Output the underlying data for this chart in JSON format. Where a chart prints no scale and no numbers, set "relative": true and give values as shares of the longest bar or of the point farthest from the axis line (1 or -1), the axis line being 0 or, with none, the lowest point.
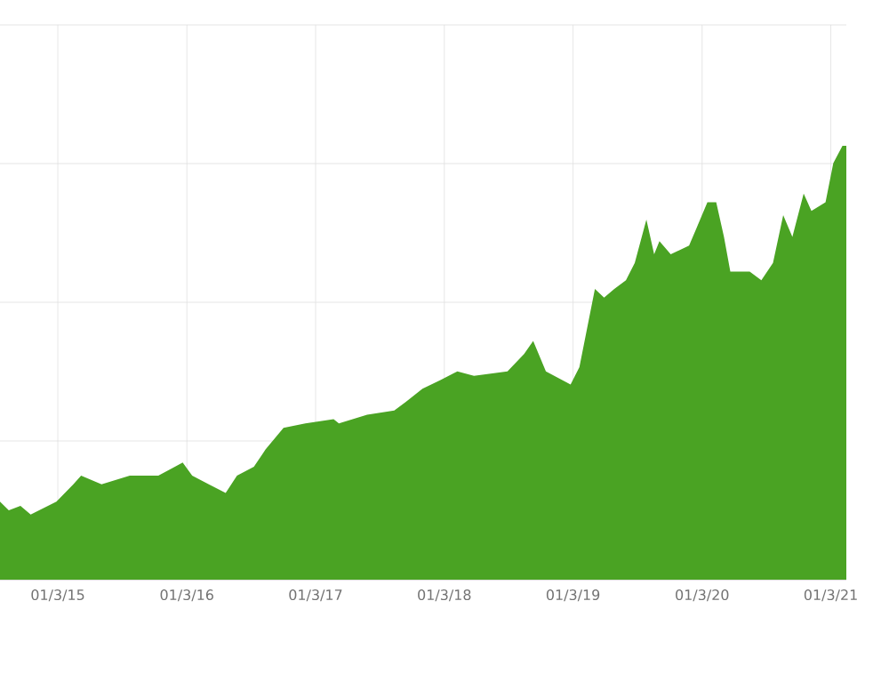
{
  "chart_data": {
    "type": "area",
    "relative": true,
    "grid": true,
    "color": "#4aa323",
    "xlim": [
      "2014-09-18",
      "2021-04-14"
    ],
    "xticks": [
      {
        "value": "2015-03-01",
        "label": "01/3/15"
      },
      {
        "value": "2016-03-01",
        "label": "01/3/16"
      },
      {
        "value": "2017-03-01",
        "label": "01/3/17"
      },
      {
        "value": "2018-03-01",
        "label": "01/3/18"
      },
      {
        "value": "2019-03-01",
        "label": "01/3/19"
      },
      {
        "value": "2020-03-01",
        "label": "01/3/20"
      },
      {
        "value": "2021-03-01",
        "label": "01/3/21"
      }
    ],
    "x": [
      "2014-09-18",
      "2014-10-13",
      "2014-11-15",
      "2014-12-14",
      "2015-02-25",
      "2015-04-14",
      "2015-05-06",
      "2015-07-03",
      "2015-09-21",
      "2015-12-11",
      "2016-01-27",
      "2016-02-18",
      "2016-03-16",
      "2016-05-02",
      "2016-06-19",
      "2016-07-21",
      "2016-09-07",
      "2016-10-10",
      "2016-11-30",
      "2017-01-31",
      "2017-04-21",
      "2017-05-06",
      "2017-07-25",
      "2017-10-10",
      "2017-11-12",
      "2017-12-29",
      "2018-02-18",
      "2018-04-07",
      "2018-05-24",
      "2018-08-27",
      "2018-10-13",
      "2018-11-08",
      "2018-12-14",
      "2019-02-22",
      "2019-03-19",
      "2019-05-02",
      "2019-05-28",
      "2019-06-26",
      "2019-07-29",
      "2019-08-23",
      "2019-09-25",
      "2019-10-17",
      "2019-11-01",
      "2019-12-03",
      "2020-01-24",
      "2020-02-14",
      "2020-03-16",
      "2020-04-10",
      "2020-05-02",
      "2020-05-20",
      "2020-07-14",
      "2020-08-16",
      "2020-09-18",
      "2020-10-17",
      "2020-11-12",
      "2020-12-14",
      "2021-01-05",
      "2021-02-14",
      "2021-03-08",
      "2021-04-03",
      "2021-04-14"
    ],
    "values": [
      0.18,
      0.16,
      0.17,
      0.15,
      0.18,
      0.22,
      0.24,
      0.22,
      0.24,
      0.24,
      0.26,
      0.27,
      0.24,
      0.22,
      0.2,
      0.24,
      0.26,
      0.3,
      0.35,
      0.36,
      0.37,
      0.36,
      0.38,
      0.39,
      0.41,
      0.44,
      0.46,
      0.48,
      0.47,
      0.48,
      0.52,
      0.55,
      0.48,
      0.45,
      0.49,
      0.67,
      0.65,
      0.67,
      0.69,
      0.73,
      0.83,
      0.75,
      0.78,
      0.75,
      0.77,
      0.81,
      0.87,
      0.87,
      0.79,
      0.71,
      0.71,
      0.69,
      0.73,
      0.84,
      0.79,
      0.89,
      0.85,
      0.87,
      0.96,
      1,
      1
    ]
  }
}
